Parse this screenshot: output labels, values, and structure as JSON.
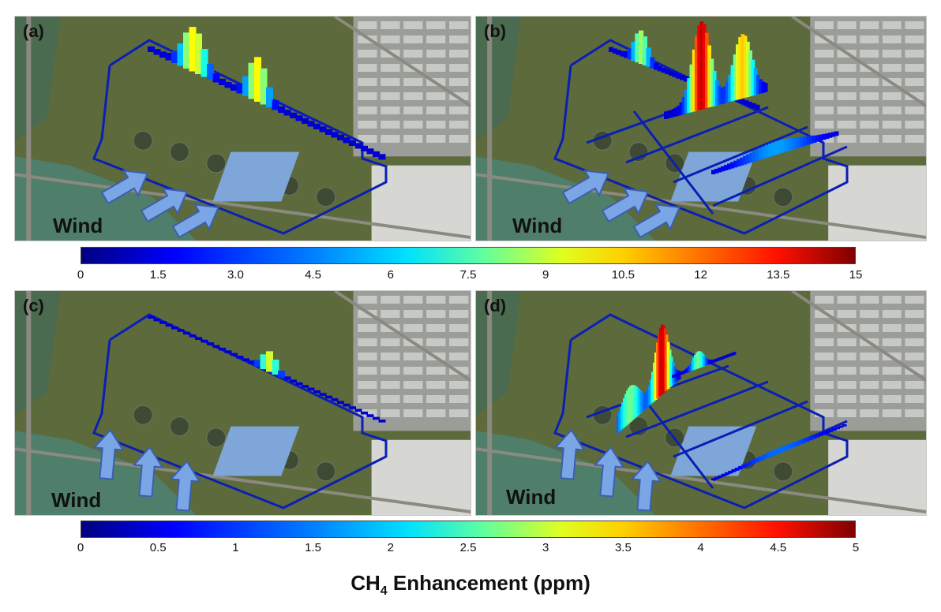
{
  "panels": [
    {
      "label": "(a)",
      "wind_label": "Wind"
    },
    {
      "label": "(b)",
      "wind_label": "Wind"
    },
    {
      "label": "(c)",
      "wind_label": "Wind"
    },
    {
      "label": "(d)",
      "wind_label": "Wind"
    }
  ],
  "colorbar_top": {
    "min": 0,
    "max": 15,
    "ticks": [
      "0",
      "1.5",
      "3.0",
      "4.5",
      "6",
      "7.5",
      "9",
      "10.5",
      "12",
      "13.5",
      "15"
    ]
  },
  "colorbar_bottom": {
    "min": 0,
    "max": 5,
    "ticks": [
      "0",
      "0.5",
      "1",
      "1.5",
      "2",
      "2.5",
      "3",
      "3.5",
      "4",
      "4.5",
      "5"
    ]
  },
  "colorbar_title": {
    "prefix": "CH",
    "subscript": "4",
    "suffix": " Enhancement (ppm)"
  },
  "colormap": "jet",
  "colors": {
    "route": "#0a1fb4",
    "arrow_fill": "#7aa6e6",
    "arrow_stroke": "#3b5fae",
    "land": "#5d6a3c",
    "water": "#4f7f6a",
    "road": "#8a8a80"
  }
}
